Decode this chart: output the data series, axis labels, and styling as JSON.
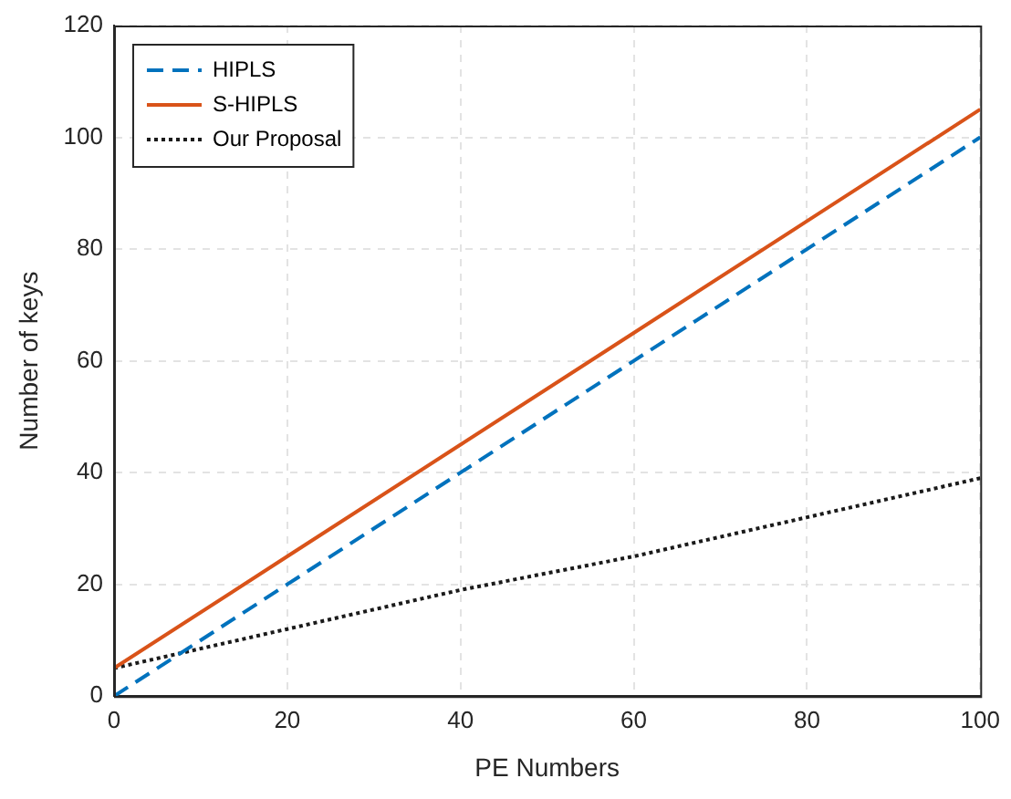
{
  "chart_data": {
    "type": "line",
    "xlabel": "PE Numbers",
    "ylabel": "Number of keys",
    "x": [
      0,
      20,
      40,
      60,
      80,
      100
    ],
    "series": [
      {
        "name": "HIPLS",
        "color": "#0072bd",
        "values": [
          0,
          20,
          40,
          60,
          80,
          100
        ],
        "line_style": "dashed"
      },
      {
        "name": "S-HIPLS",
        "color": "#d95319",
        "values": [
          5,
          25,
          45,
          65,
          85,
          105
        ],
        "line_style": "solid"
      },
      {
        "name": "Our Proposal",
        "color": "#1a1a1a",
        "values": [
          5,
          12,
          19,
          25,
          32,
          39
        ],
        "line_style": "dotted"
      }
    ],
    "xlim": [
      0,
      100
    ],
    "xticks": [
      0,
      20,
      40,
      60,
      80,
      100
    ],
    "ylim": [
      0,
      120
    ],
    "yticks": [
      0,
      20,
      40,
      60,
      80,
      100,
      120
    ],
    "grid": true,
    "legend": "top left",
    "marker": "none"
  }
}
